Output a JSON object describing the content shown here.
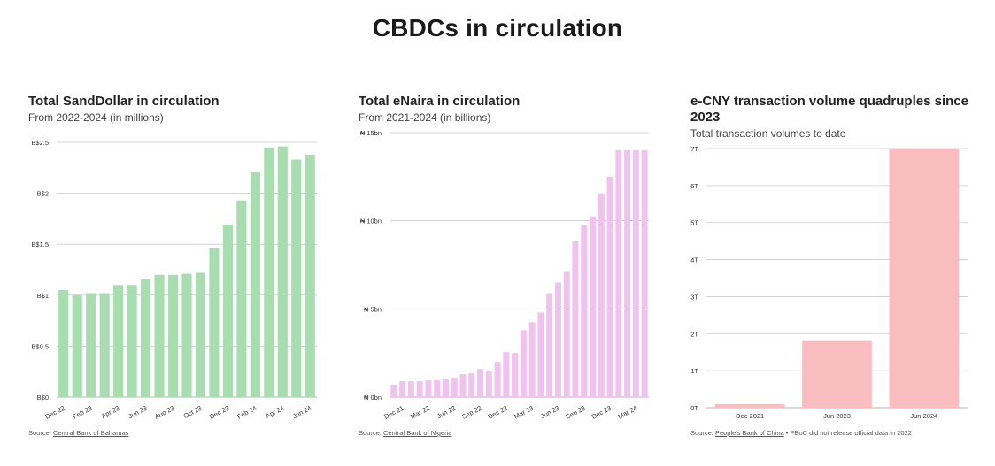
{
  "page": {
    "title": "CBDCs in circulation"
  },
  "panels": [
    {
      "title": "Total SandDollar in circulation",
      "subtitle": "From 2022-2024 (in millions)",
      "source_prefix": "Source: ",
      "source_link": "Central Bank of Bahamas",
      "source_suffix": ""
    },
    {
      "title": "Total eNaira in circulation",
      "subtitle": "From 2021-2024 (in billions)",
      "source_prefix": "Source: ",
      "source_link": "Central Bank of Nigeria",
      "source_suffix": ""
    },
    {
      "title": "e-CNY transaction volume quadruples since 2023",
      "subtitle": "Total transaction volumes to date",
      "source_prefix": "Source: ",
      "source_link": "People's Bank of China",
      "source_suffix": " • PBoC did not release official data in 2022"
    }
  ],
  "chart_data": [
    {
      "type": "bar",
      "title": "Total SandDollar in circulation",
      "color": "#a8ddb0",
      "ylim": [
        0,
        2.5
      ],
      "yticks": [
        0,
        0.5,
        1,
        1.5,
        2,
        2.5
      ],
      "ytick_labels": [
        "B$0",
        "B$0.5",
        "B$1",
        "B$1.5",
        "B$2",
        "B$2.5"
      ],
      "values": [
        1.05,
        1.0,
        1.02,
        1.02,
        1.1,
        1.1,
        1.16,
        1.2,
        1.2,
        1.21,
        1.22,
        1.46,
        1.69,
        1.93,
        2.21,
        2.45,
        2.46,
        2.33,
        2.38
      ],
      "xtick_indices": [
        0,
        2,
        4,
        6,
        8,
        10,
        12,
        14,
        16,
        18
      ],
      "xtick_labels": [
        "Dec 22",
        "Feb 23",
        "Apr 23",
        "Jun 23",
        "Aug 23",
        "Oct 23",
        "Dec 23",
        "Feb 24",
        "Apr 24",
        "Jun 24"
      ]
    },
    {
      "type": "bar",
      "title": "Total eNaira in circulation",
      "color": "#f1c2ef",
      "ylim": [
        0,
        15
      ],
      "yticks": [
        0,
        5,
        10,
        15
      ],
      "ytick_labels": [
        "₦ 0bn",
        "₦ 5bn",
        "₦ 10bn",
        "₦ 15bn"
      ],
      "values": [
        0.7,
        0.9,
        0.9,
        0.9,
        0.95,
        0.95,
        1.0,
        1.05,
        1.3,
        1.35,
        1.6,
        1.45,
        2.0,
        2.55,
        2.5,
        3.8,
        4.25,
        4.8,
        5.9,
        6.5,
        7.1,
        8.85,
        9.75,
        10.25,
        11.55,
        12.5,
        14.0,
        14.0,
        14.0,
        14.0
      ],
      "xtick_indices": [
        1,
        4,
        7,
        10,
        13,
        16,
        19,
        22,
        25,
        28
      ],
      "xtick_labels": [
        "Dec 21",
        "Mar 22",
        "Jun 22",
        "Sep 22",
        "Dec 22",
        "Mar 23",
        "Jun 23",
        "Sep 23",
        "Dec 23",
        "Mar 24"
      ]
    },
    {
      "type": "bar",
      "title": "e-CNY transaction volume quadruples since 2023",
      "color": "#f9bcbf",
      "ylim": [
        0,
        7
      ],
      "yticks": [
        0,
        1,
        2,
        3,
        4,
        5,
        6,
        7
      ],
      "ytick_labels": [
        "¥0T",
        "¥1T",
        "¥2T",
        "¥3T",
        "¥4T",
        "¥5T",
        "¥6T",
        "¥7T"
      ],
      "categories": [
        "Dec 2021",
        "Jun 2023",
        "Jun 2024"
      ],
      "values": [
        0.1,
        1.8,
        7.0
      ]
    }
  ]
}
